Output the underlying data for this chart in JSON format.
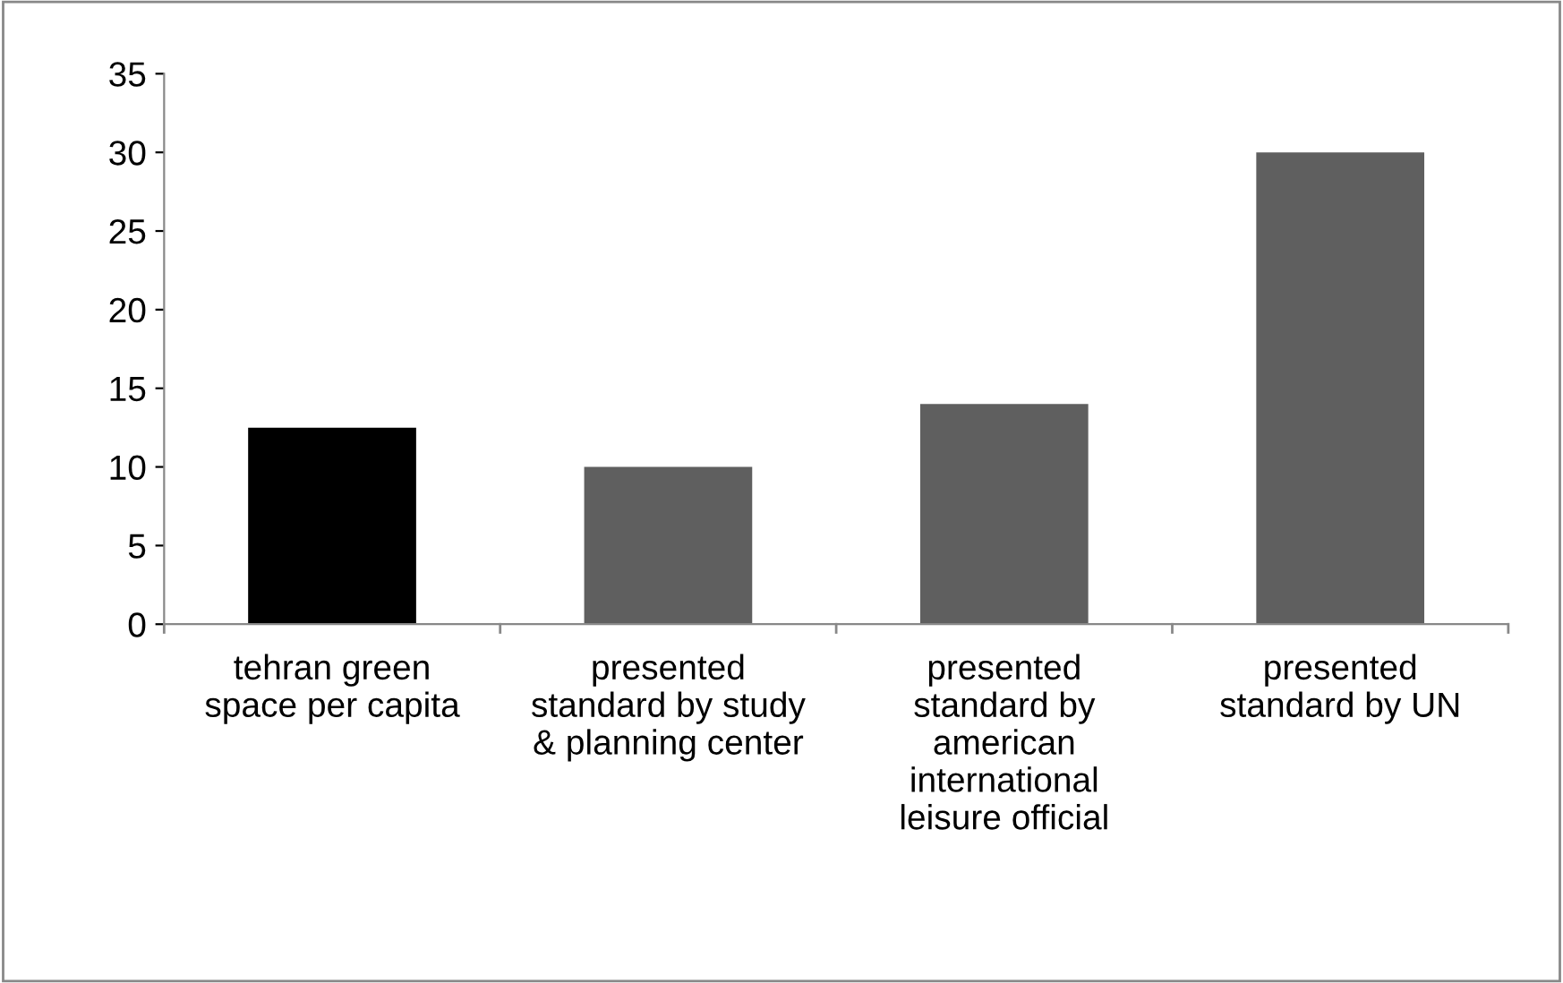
{
  "chart_data": {
    "type": "bar",
    "categories": [
      "tehran green space per capita",
      "presented standard by study & planning center",
      "presented standard by american international leisure official",
      "presented standard by UN"
    ],
    "values": [
      12.5,
      10,
      14,
      30
    ],
    "colors": [
      "#000000",
      "#5f5f5f",
      "#5f5f5f",
      "#5f5f5f"
    ],
    "ylim": [
      0,
      35
    ],
    "yticks": [
      0,
      5,
      10,
      15,
      20,
      25,
      30,
      35
    ],
    "grid": false,
    "legend": false
  }
}
